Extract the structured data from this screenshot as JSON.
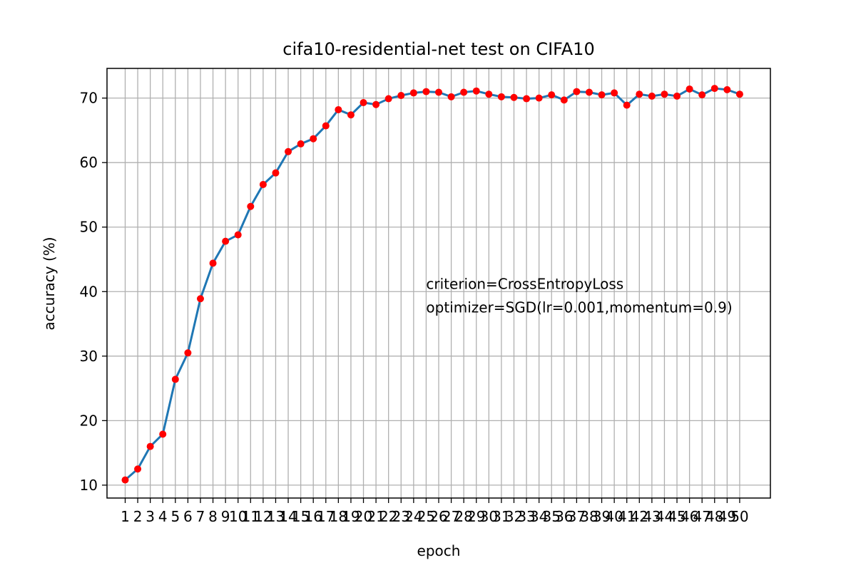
{
  "chart_data": {
    "type": "line",
    "title": "cifa10-residential-net test on CIFA10",
    "xlabel": "epoch",
    "ylabel": "accuracy (%)",
    "x": [
      1,
      2,
      3,
      4,
      5,
      6,
      7,
      8,
      9,
      10,
      11,
      12,
      13,
      14,
      15,
      16,
      17,
      18,
      19,
      20,
      21,
      22,
      23,
      24,
      25,
      26,
      27,
      28,
      29,
      30,
      31,
      32,
      33,
      34,
      35,
      36,
      37,
      38,
      39,
      40,
      41,
      42,
      43,
      44,
      45,
      46,
      47,
      48,
      49,
      50
    ],
    "series": [
      {
        "values": [
          10.8,
          12.5,
          16.0,
          17.9,
          26.4,
          30.5,
          38.9,
          44.4,
          47.8,
          48.8,
          53.2,
          56.6,
          58.4,
          61.7,
          62.9,
          63.7,
          65.7,
          68.2,
          67.4,
          69.3,
          69.0,
          69.9,
          70.4,
          70.8,
          71.0,
          70.9,
          70.2,
          70.9,
          71.1,
          70.6,
          70.2,
          70.1,
          69.9,
          70.0,
          70.5,
          69.7,
          71.0,
          70.9,
          70.5,
          70.8,
          68.9,
          70.6,
          70.3,
          70.6,
          70.3,
          71.4,
          70.5,
          71.5,
          71.3,
          70.6
        ],
        "line_color": "#1f77b4",
        "marker_color": "#ff0000"
      }
    ],
    "xlim": [
      -0.45,
      52.45
    ],
    "ylim": [
      8.0,
      74.6
    ],
    "yticks": [
      10,
      20,
      30,
      40,
      50,
      60,
      70
    ],
    "grid": true,
    "annotation": {
      "lines": [
        "criterion=CrossEntropyLoss",
        "optimizer=SGD(lr=0.001,momentum=0.9)"
      ],
      "anchor": {
        "x": 25,
        "y": 40
      }
    }
  }
}
